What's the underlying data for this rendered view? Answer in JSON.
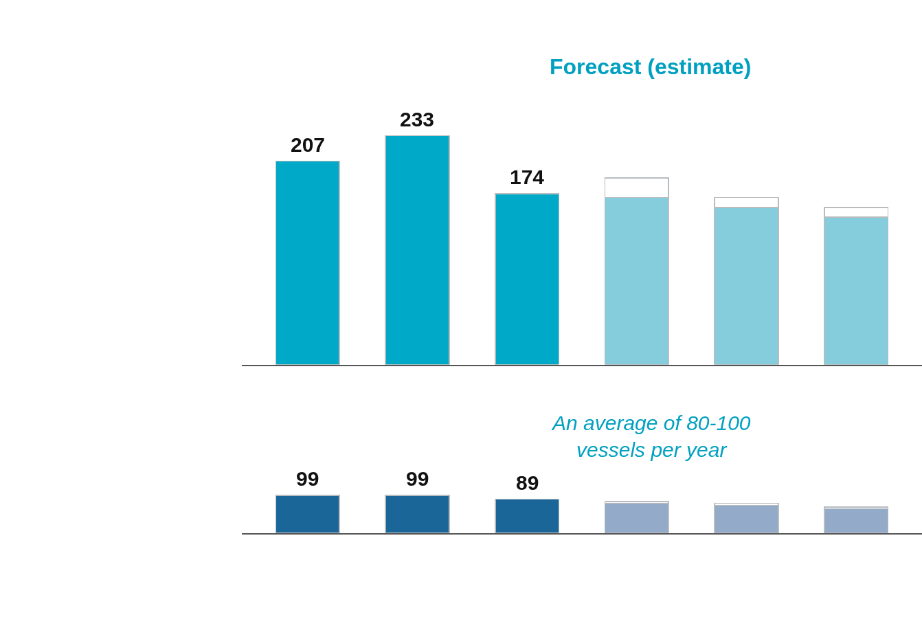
{
  "chart_data": [
    {
      "type": "bar",
      "stacked": true,
      "categories": [
        null,
        null,
        null,
        null,
        null,
        null
      ],
      "series": [
        {
          "colors": [
            "#00a9c7",
            "#00a9c7",
            "#00a9c7",
            "#85ccdd",
            "#85ccdd",
            "#85ccdd"
          ],
          "values": [
            207,
            233,
            174,
            170,
            160,
            150
          ],
          "value_labels": [
            "207",
            "233",
            "174",
            null,
            null,
            null
          ]
        },
        {
          "color": "#ffffff",
          "values": [
            null,
            null,
            null,
            20,
            10,
            10
          ]
        }
      ],
      "annotations": [
        "Forecast (estimate)"
      ],
      "tick_labels": false
    },
    {
      "type": "bar",
      "stacked": true,
      "categories": [
        null,
        null,
        null,
        null,
        null,
        null
      ],
      "series": [
        {
          "colors": [
            "#1a6699",
            "#1a6699",
            "#1a6699",
            "#94aac9",
            "#94aac9",
            "#94aac9"
          ],
          "values": [
            99,
            99,
            89,
            78,
            73,
            64
          ],
          "value_labels": [
            "99",
            "99",
            "89",
            null,
            null,
            null
          ]
        },
        {
          "color": "#ffffff",
          "values": [
            null,
            null,
            null,
            5,
            5,
            5
          ]
        }
      ],
      "annotations": [
        "An average of 80-100\nvessels per year"
      ],
      "tick_labels": false
    }
  ]
}
